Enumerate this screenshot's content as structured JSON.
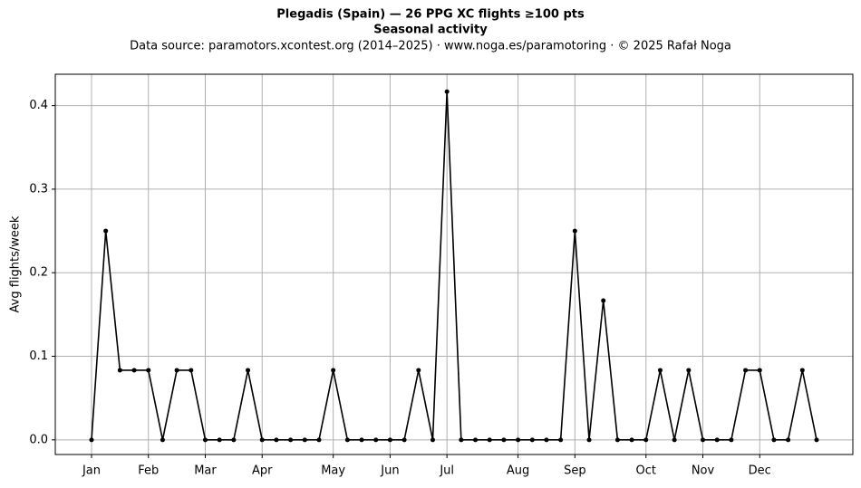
{
  "chart_data": {
    "type": "line",
    "title": "Plegadis (Spain)  —  26 PPG XC flights ≥100 pts",
    "subtitle": "Seasonal activity",
    "source": "Data source: paramotors.xcontest.org (2014–2025)  ·  www.noga.es/paramotoring  ·  © 2025 Rafał Noga",
    "y_label": "Avg flights/week",
    "x": [
      1,
      2,
      3,
      4,
      5,
      6,
      7,
      8,
      9,
      10,
      11,
      12,
      13,
      14,
      15,
      16,
      17,
      18,
      19,
      20,
      21,
      22,
      23,
      24,
      25,
      26,
      27,
      28,
      29,
      30,
      31,
      32,
      33,
      34,
      35,
      36,
      37,
      38,
      39,
      40,
      41,
      42,
      43,
      44,
      45,
      46,
      47,
      48,
      49,
      50,
      51,
      52
    ],
    "series": [
      {
        "name": "Avg flights/week",
        "color": "#000000",
        "values": [
          0,
          0.25,
          0.0833,
          0.0833,
          0.0833,
          0,
          0.0833,
          0.0833,
          0,
          0,
          0,
          0.0833,
          0,
          0,
          0,
          0,
          0,
          0.0833,
          0,
          0,
          0,
          0,
          0,
          0.0833,
          0,
          0.4167,
          0,
          0,
          0,
          0,
          0,
          0,
          0,
          0,
          0.25,
          0,
          0.1667,
          0,
          0,
          0,
          0.0833,
          0,
          0.0833,
          0,
          0,
          0,
          0.0833,
          0.0833,
          0,
          0,
          0.0833,
          0
        ]
      }
    ],
    "xlim": [
      -1.55,
      54.55
    ],
    "xticks": [
      {
        "value": 1,
        "label": "Jan"
      },
      {
        "value": 5,
        "label": "Feb"
      },
      {
        "value": 9,
        "label": "Mar"
      },
      {
        "value": 13,
        "label": "Apr"
      },
      {
        "value": 18,
        "label": "May"
      },
      {
        "value": 22,
        "label": "Jun"
      },
      {
        "value": 26,
        "label": "Jul"
      },
      {
        "value": 31,
        "label": "Aug"
      },
      {
        "value": 35,
        "label": "Sep"
      },
      {
        "value": 40,
        "label": "Oct"
      },
      {
        "value": 44,
        "label": "Nov"
      },
      {
        "value": 48,
        "label": "Dec"
      }
    ],
    "ylim": [
      -0.0175,
      0.4375
    ],
    "yticks": [
      {
        "value": 0,
        "label": "0.0"
      },
      0.1,
      0.2,
      0.3,
      0.4
    ],
    "grid": true
  }
}
